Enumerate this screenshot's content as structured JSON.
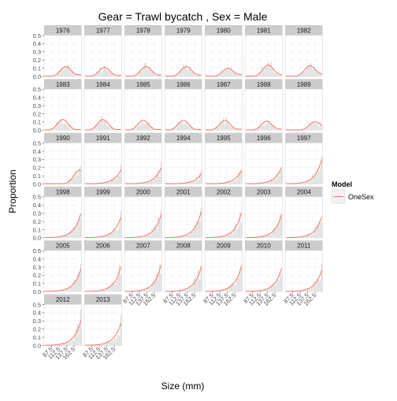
{
  "chart_data": {
    "type": "line",
    "title": "Gear = Trawl bycatch , Sex = Male",
    "xlabel": "Size (mm)",
    "ylabel": "Proportion",
    "xlim": [
      62.5,
      187.5
    ],
    "ylim": [
      0,
      0.5
    ],
    "x_ticks": [
      "87.5",
      "112.5",
      "137.5",
      "162.5"
    ],
    "x_tick_values": [
      87.5,
      112.5,
      137.5,
      162.5
    ],
    "y_ticks": [
      "0.0",
      "0.1",
      "0.2",
      "0.3",
      "0.4",
      "0.5"
    ],
    "y_tick_values": [
      0,
      0.1,
      0.2,
      0.3,
      0.4,
      0.5
    ],
    "grid": true,
    "bins": [
      65,
      70,
      75,
      80,
      85,
      90,
      95,
      100,
      105,
      110,
      115,
      120,
      125,
      130,
      135,
      140,
      145,
      150,
      155,
      160,
      165,
      170,
      175,
      180,
      185
    ],
    "legend": {
      "title": "Model",
      "entries": [
        "OneSex"
      ],
      "position": "right",
      "line_color": "#F8766D"
    },
    "colors": {
      "observed_bars": "#d9d9d9",
      "fit_line": "#F8766D",
      "strip": "#cccccc",
      "panel": "#ffffff",
      "grid": "#eeeeee"
    },
    "panels": [
      {
        "label": "1976",
        "peak": 135,
        "peakValue": 0.12,
        "tail": 0.06
      },
      {
        "label": "1977",
        "peak": 130,
        "peakValue": 0.11,
        "tail": 0.03
      },
      {
        "label": "1978",
        "peak": 135,
        "peakValue": 0.12,
        "tail": 0.04
      },
      {
        "label": "1979",
        "peak": 135,
        "peakValue": 0.12,
        "tail": 0.04
      },
      {
        "label": "1980",
        "peak": 140,
        "peakValue": 0.1,
        "tail": 0.05
      },
      {
        "label": "1981",
        "peak": 140,
        "peakValue": 0.14,
        "tail": 0.04
      },
      {
        "label": "1982",
        "peak": 145,
        "peakValue": 0.13,
        "tail": 0.05
      },
      {
        "label": "1983",
        "peak": 125,
        "peakValue": 0.13,
        "tail": 0.02
      },
      {
        "label": "1984",
        "peak": 125,
        "peakValue": 0.13,
        "tail": 0.02
      },
      {
        "label": "1985",
        "peak": 125,
        "peakValue": 0.12,
        "tail": 0.02
      },
      {
        "label": "1986",
        "peak": 125,
        "peakValue": 0.12,
        "tail": 0.02
      },
      {
        "label": "1987",
        "peak": 130,
        "peakValue": 0.12,
        "tail": 0.03
      },
      {
        "label": "1988",
        "peak": 135,
        "peakValue": 0.11,
        "tail": 0.03
      },
      {
        "label": "1989",
        "peak": 160,
        "peakValue": 0.1,
        "tail": 0.06
      },
      {
        "label": "1990",
        "peak": 175,
        "peakValue": 0.13,
        "tail": 0.13
      },
      {
        "label": "1991",
        "peak": 185,
        "peakValue": 0.17,
        "tail": 0.17
      },
      {
        "label": "1992",
        "peak": 185,
        "peakValue": 0.19,
        "tail": 0.19
      },
      {
        "label": "1994",
        "peak": 185,
        "peakValue": 0.12,
        "tail": 0.12
      },
      {
        "label": "1995",
        "peak": 185,
        "peakValue": 0.16,
        "tail": 0.16
      },
      {
        "label": "1996",
        "peak": 185,
        "peakValue": 0.2,
        "tail": 0.2
      },
      {
        "label": "1997",
        "peak": 185,
        "peakValue": 0.3,
        "tail": 0.3
      },
      {
        "label": "1998",
        "peak": 185,
        "peakValue": 0.29,
        "tail": 0.29
      },
      {
        "label": "1999",
        "peak": 185,
        "peakValue": 0.25,
        "tail": 0.25
      },
      {
        "label": "2000",
        "peak": 185,
        "peakValue": 0.28,
        "tail": 0.28
      },
      {
        "label": "2001",
        "peak": 185,
        "peakValue": 0.32,
        "tail": 0.32
      },
      {
        "label": "2002",
        "peak": 185,
        "peakValue": 0.3,
        "tail": 0.3
      },
      {
        "label": "2003",
        "peak": 185,
        "peakValue": 0.28,
        "tail": 0.28
      },
      {
        "label": "2004",
        "peak": 185,
        "peakValue": 0.25,
        "tail": 0.25
      },
      {
        "label": "2005",
        "peak": 185,
        "peakValue": 0.27,
        "tail": 0.27
      },
      {
        "label": "2006",
        "peak": 185,
        "peakValue": 0.3,
        "tail": 0.3
      },
      {
        "label": "2007",
        "peak": 185,
        "peakValue": 0.32,
        "tail": 0.32
      },
      {
        "label": "2008",
        "peak": 185,
        "peakValue": 0.3,
        "tail": 0.3
      },
      {
        "label": "2009",
        "peak": 185,
        "peakValue": 0.31,
        "tail": 0.31
      },
      {
        "label": "2010",
        "peak": 185,
        "peakValue": 0.28,
        "tail": 0.28
      },
      {
        "label": "2011",
        "peak": 185,
        "peakValue": 0.26,
        "tail": 0.26
      },
      {
        "label": "2012",
        "peak": 185,
        "peakValue": 0.3,
        "tail": 0.3
      },
      {
        "label": "2013",
        "peak": 185,
        "peakValue": 0.27,
        "tail": 0.27
      }
    ]
  }
}
